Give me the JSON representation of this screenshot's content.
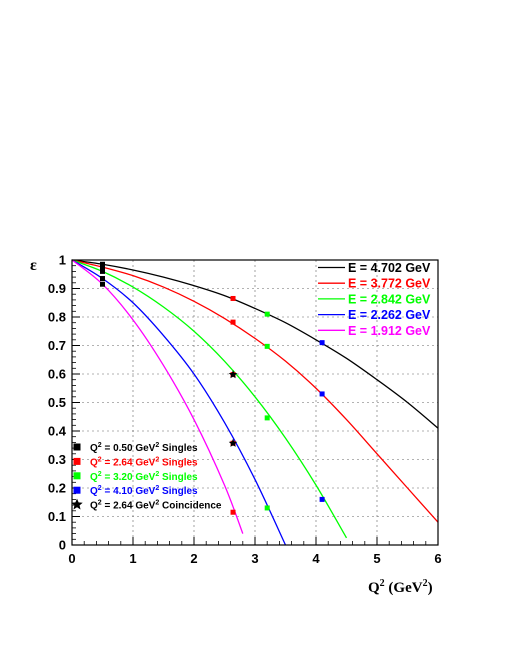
{
  "chart_data": {
    "type": "line",
    "xlabel": {
      "base": "Q",
      "sup": "2",
      "unit_open": " (GeV",
      "unit_sup": "2",
      "unit_close": ")"
    },
    "ylabel": "ε",
    "xlim": [
      0,
      6
    ],
    "ylim": [
      0,
      1
    ],
    "x_ticks": [
      "0",
      "1",
      "2",
      "3",
      "4",
      "5",
      "6"
    ],
    "y_ticks": [
      "0",
      "0.1",
      "0.2",
      "0.3",
      "0.4",
      "0.5",
      "0.6",
      "0.7",
      "0.8",
      "0.9",
      "1"
    ],
    "grid": true,
    "curves": [
      {
        "label": "E = 4.702 GeV",
        "color": "#000000",
        "x": [
          0,
          0.5,
          1,
          1.5,
          2,
          2.5,
          3,
          3.5,
          4,
          4.5,
          5,
          5.5,
          6
        ],
        "y": [
          1.0,
          0.985,
          0.965,
          0.94,
          0.91,
          0.875,
          0.83,
          0.78,
          0.72,
          0.655,
          0.58,
          0.5,
          0.41
        ]
      },
      {
        "label": "E = 3.772 GeV",
        "color": "#ff0000",
        "x": [
          0,
          0.5,
          1,
          1.5,
          2,
          2.5,
          3,
          3.5,
          4,
          4.5,
          5,
          5.5,
          6
        ],
        "y": [
          1.0,
          0.975,
          0.945,
          0.905,
          0.855,
          0.795,
          0.725,
          0.645,
          0.55,
          0.44,
          0.32,
          0.2,
          0.08
        ]
      },
      {
        "label": "E = 2.842 GeV",
        "color": "#00ff00",
        "x": [
          0,
          0.5,
          1,
          1.5,
          2,
          2.5,
          3,
          3.5,
          4,
          4.5
        ],
        "y": [
          1.0,
          0.96,
          0.905,
          0.835,
          0.75,
          0.645,
          0.52,
          0.375,
          0.21,
          0.025
        ]
      },
      {
        "label": "E = 2.262 GeV",
        "color": "#0000ff",
        "x": [
          0,
          0.5,
          1,
          1.5,
          2,
          2.5,
          3,
          3.5
        ],
        "y": [
          1.0,
          0.935,
          0.85,
          0.735,
          0.6,
          0.43,
          0.23,
          0.0
        ]
      },
      {
        "label": "E = 1.912 GeV",
        "color": "#ff00ff",
        "x": [
          0,
          0.5,
          1,
          1.5,
          2,
          2.5,
          2.8
        ],
        "y": [
          1.0,
          0.915,
          0.79,
          0.63,
          0.44,
          0.21,
          0.04
        ]
      }
    ],
    "points": [
      {
        "x": 0.5,
        "y": 0.985,
        "color": "#000000",
        "shape": "square"
      },
      {
        "x": 0.5,
        "y": 0.975,
        "color": "#000000",
        "shape": "square"
      },
      {
        "x": 0.5,
        "y": 0.96,
        "color": "#000000",
        "shape": "square"
      },
      {
        "x": 0.5,
        "y": 0.935,
        "color": "#000000",
        "shape": "square"
      },
      {
        "x": 0.5,
        "y": 0.915,
        "color": "#000000",
        "shape": "square"
      },
      {
        "x": 2.64,
        "y": 0.865,
        "color": "#ff0000",
        "shape": "square"
      },
      {
        "x": 2.64,
        "y": 0.782,
        "color": "#ff0000",
        "shape": "square"
      },
      {
        "x": 2.64,
        "y": 0.598,
        "color": "#ff0000",
        "shape": "square"
      },
      {
        "x": 2.64,
        "y": 0.357,
        "color": "#ff0000",
        "shape": "square"
      },
      {
        "x": 2.64,
        "y": 0.115,
        "color": "#ff0000",
        "shape": "square"
      },
      {
        "x": 2.64,
        "y": 0.598,
        "color": "#000000",
        "shape": "star"
      },
      {
        "x": 2.64,
        "y": 0.357,
        "color": "#000000",
        "shape": "star"
      },
      {
        "x": 3.2,
        "y": 0.81,
        "color": "#00ff00",
        "shape": "square"
      },
      {
        "x": 3.2,
        "y": 0.697,
        "color": "#00ff00",
        "shape": "square"
      },
      {
        "x": 3.2,
        "y": 0.446,
        "color": "#00ff00",
        "shape": "square"
      },
      {
        "x": 3.2,
        "y": 0.13,
        "color": "#00ff00",
        "shape": "square"
      },
      {
        "x": 4.1,
        "y": 0.71,
        "color": "#0000ff",
        "shape": "square"
      },
      {
        "x": 4.1,
        "y": 0.53,
        "color": "#0000ff",
        "shape": "square"
      },
      {
        "x": 4.1,
        "y": 0.16,
        "color": "#0000ff",
        "shape": "square"
      }
    ],
    "legend_curves_position": "top-right",
    "legend_points_position": "bottom-left",
    "legend_points": [
      {
        "color": "#000000",
        "shape": "square",
        "pre": "Q",
        "sup": "2",
        "mid": " = 0.50 GeV",
        "sup2": "2",
        "post": " Singles"
      },
      {
        "color": "#ff0000",
        "shape": "square",
        "pre": "Q",
        "sup": "2",
        "mid": " = 2.64 GeV",
        "sup2": "2",
        "post": " Singles"
      },
      {
        "color": "#00ff00",
        "shape": "square",
        "pre": "Q",
        "sup": "2",
        "mid": " = 3.20 GeV",
        "sup2": "2",
        "post": " Singles"
      },
      {
        "color": "#0000ff",
        "shape": "square",
        "pre": "Q",
        "sup": "2",
        "mid": " = 4.10 GeV",
        "sup2": "2",
        "post": " Singles"
      },
      {
        "color": "#000000",
        "shape": "star",
        "pre": "Q",
        "sup": "2",
        "mid": " = 2.64 GeV",
        "sup2": "2",
        "post": " Coincidence"
      }
    ]
  }
}
